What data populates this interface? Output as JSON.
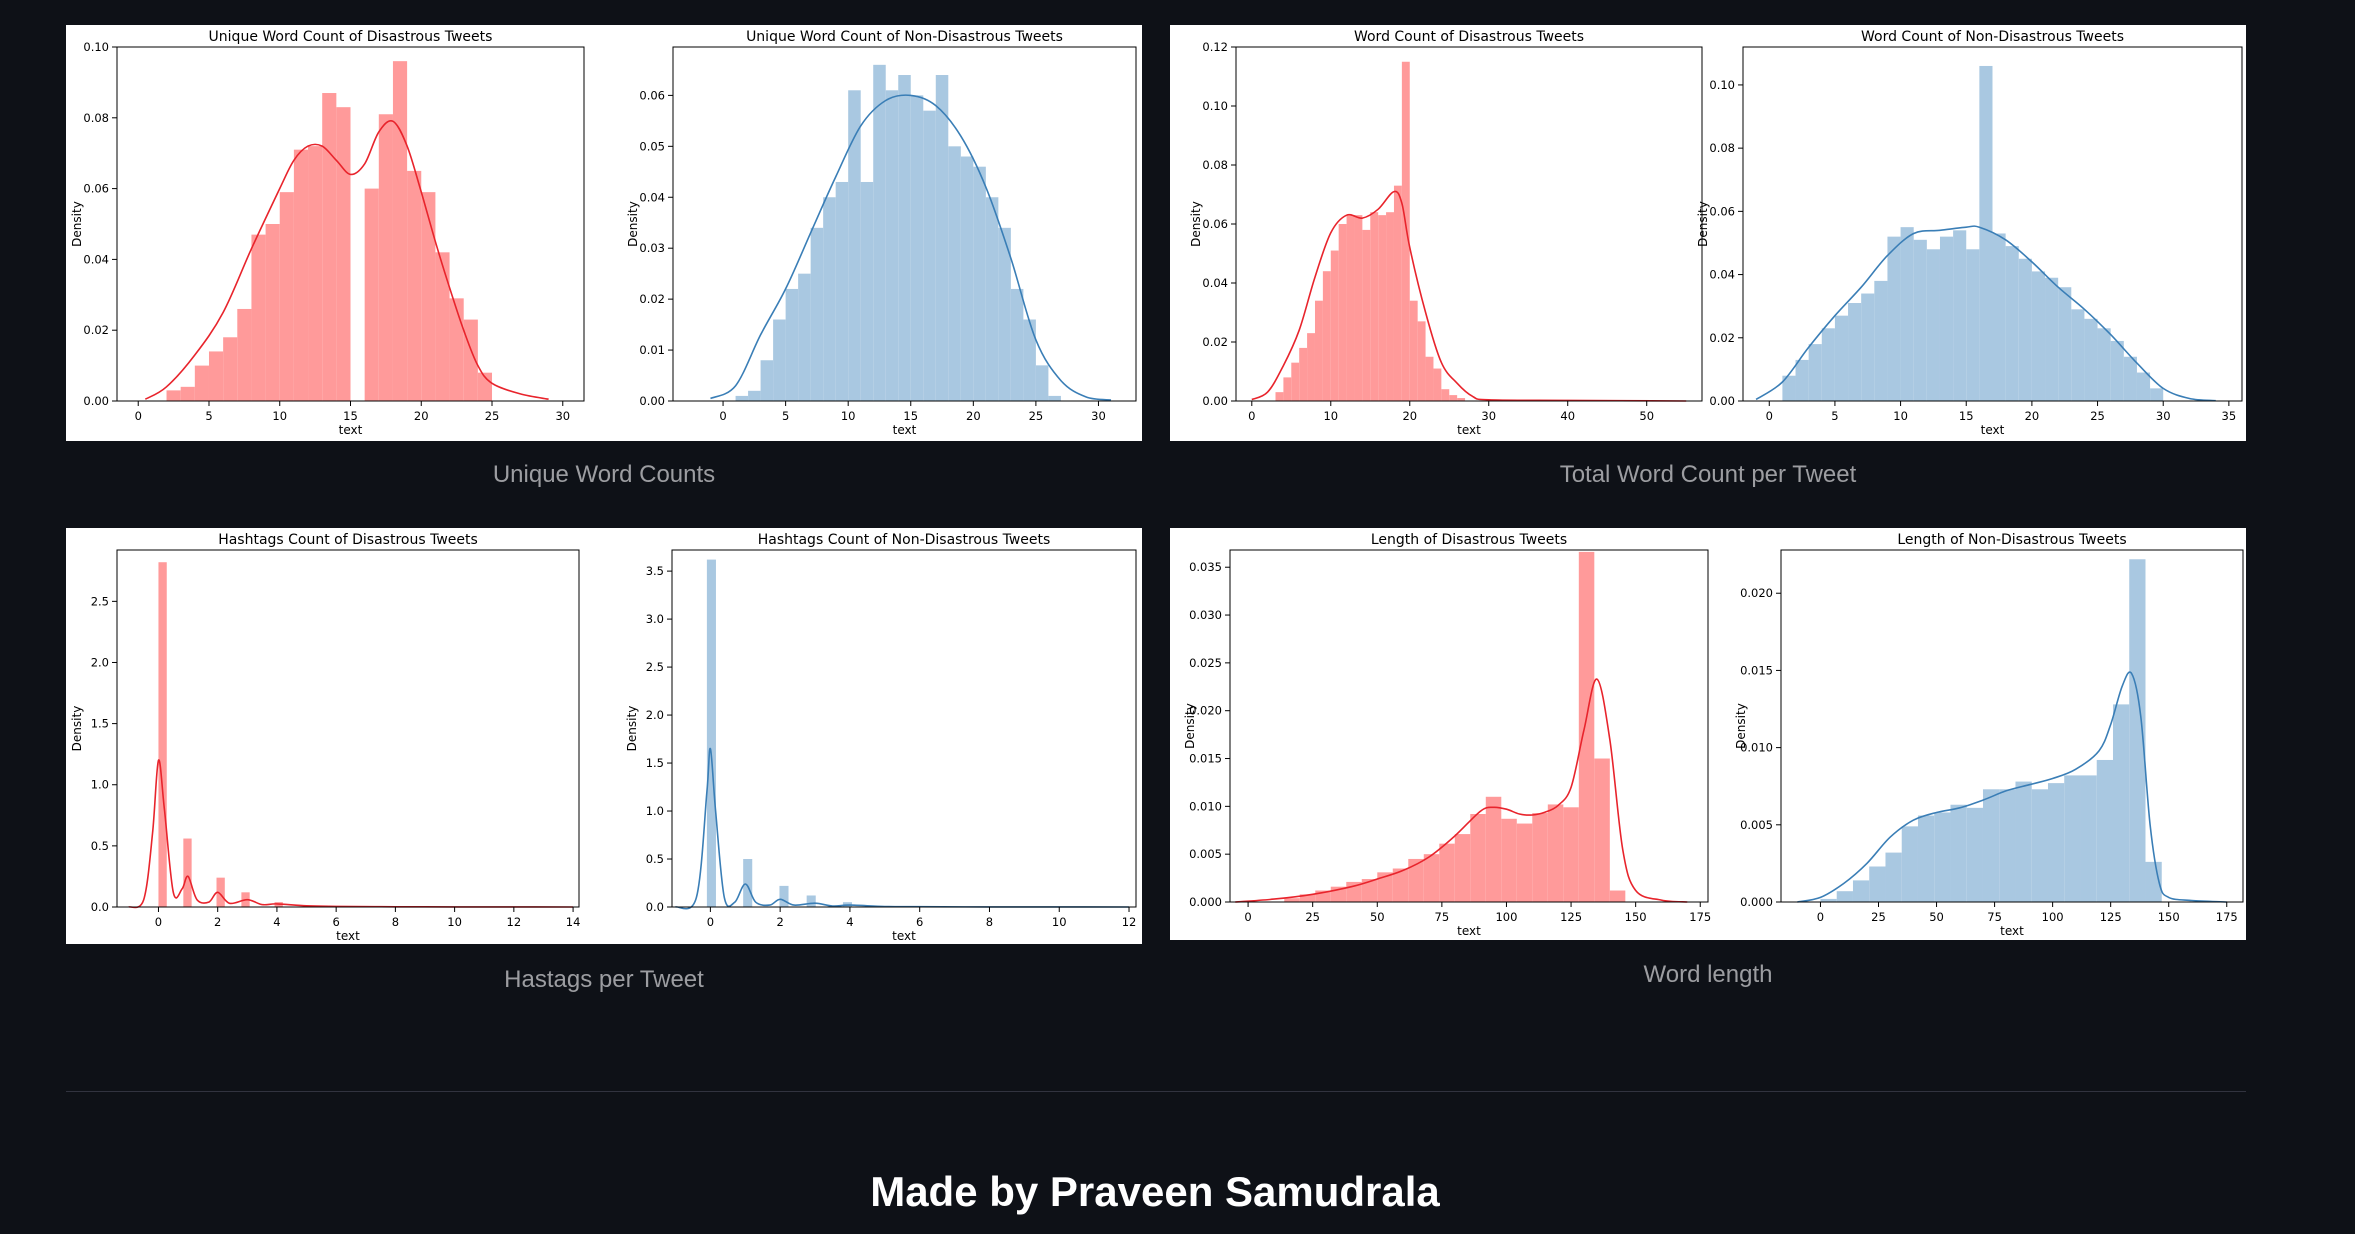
{
  "groups": [
    {
      "caption": "Unique Word Counts"
    },
    {
      "caption": "Total Word Count per Tweet"
    },
    {
      "caption": "Hastags per Tweet"
    },
    {
      "caption": "Word length"
    }
  ],
  "footer": {
    "text": "Made by Praveen Samudrala"
  },
  "colors": {
    "disastrous": "#ff9a9a",
    "disastrous_line": "#e8242c",
    "non_disastrous": "#a9c8e1",
    "non_disastrous_line": "#3a7eb6"
  },
  "chart_data": [
    {
      "type": "bar",
      "title": "Unique Word Count of Disastrous Tweets",
      "xlabel": "text",
      "ylabel": "Density",
      "xlim": [
        -1.5,
        31.5
      ],
      "ylim": [
        0,
        0.1
      ],
      "xticks": [
        0,
        5,
        10,
        15,
        20,
        25,
        30
      ],
      "yticks": [
        0,
        0.02,
        0.04,
        0.06,
        0.08,
        0.1
      ],
      "ytick_labels": [
        "0.00",
        "0.02",
        "0.04",
        "0.06",
        "0.08",
        "0.10"
      ],
      "bin_edges": [
        2,
        3,
        4,
        5,
        6,
        7,
        8,
        9,
        10,
        11,
        12,
        13,
        14,
        15,
        16,
        17,
        18,
        19,
        20,
        21,
        22,
        23,
        24,
        25
      ],
      "values": [
        0.003,
        0.004,
        0.01,
        0.014,
        0.018,
        0.026,
        0.047,
        0.05,
        0.059,
        0.071,
        0.072,
        0.087,
        0.083,
        0.0,
        0.06,
        0.081,
        0.096,
        0.065,
        0.059,
        0.042,
        0.029,
        0.023,
        0.008
      ],
      "kde": [
        [
          0.5,
          0.0005
        ],
        [
          2,
          0.004
        ],
        [
          4,
          0.013
        ],
        [
          6,
          0.025
        ],
        [
          8,
          0.043
        ],
        [
          10,
          0.06
        ],
        [
          11,
          0.068
        ],
        [
          12,
          0.072
        ],
        [
          13,
          0.072
        ],
        [
          14,
          0.068
        ],
        [
          15,
          0.064
        ],
        [
          16,
          0.067
        ],
        [
          17,
          0.076
        ],
        [
          18,
          0.079
        ],
        [
          19,
          0.072
        ],
        [
          20,
          0.059
        ],
        [
          21,
          0.045
        ],
        [
          22,
          0.032
        ],
        [
          23,
          0.02
        ],
        [
          24,
          0.01
        ],
        [
          25,
          0.005
        ],
        [
          27,
          0.002
        ],
        [
          29,
          0.0005
        ]
      ],
      "color": "disastrous"
    },
    {
      "type": "bar",
      "title": "Unique Word Count of Non-Disastrous Tweets",
      "xlabel": "text",
      "ylabel": "Density",
      "xlim": [
        -4,
        33
      ],
      "ylim": [
        0,
        0.0695
      ],
      "xticks": [
        0,
        5,
        10,
        15,
        20,
        25,
        30
      ],
      "yticks": [
        0,
        0.01,
        0.02,
        0.03,
        0.04,
        0.05,
        0.06
      ],
      "ytick_labels": [
        "0.00",
        "0.01",
        "0.02",
        "0.03",
        "0.04",
        "0.05",
        "0.06"
      ],
      "bin_edges": [
        1,
        2,
        3,
        4,
        5,
        6,
        7,
        8,
        9,
        10,
        11,
        12,
        13,
        14,
        15,
        16,
        17,
        18,
        19,
        20,
        21,
        22,
        23,
        24,
        25,
        26,
        27
      ],
      "values": [
        0.001,
        0.002,
        0.008,
        0.016,
        0.022,
        0.025,
        0.034,
        0.04,
        0.043,
        0.061,
        0.043,
        0.066,
        0.061,
        0.064,
        0.06,
        0.057,
        0.064,
        0.05,
        0.048,
        0.046,
        0.04,
        0.034,
        0.022,
        0.016,
        0.007,
        0.001
      ],
      "kde": [
        [
          -1,
          0.0005
        ],
        [
          1,
          0.003
        ],
        [
          3,
          0.013
        ],
        [
          5,
          0.022
        ],
        [
          7,
          0.033
        ],
        [
          9,
          0.044
        ],
        [
          11,
          0.054
        ],
        [
          13,
          0.059
        ],
        [
          15,
          0.06
        ],
        [
          17,
          0.058
        ],
        [
          19,
          0.052
        ],
        [
          21,
          0.042
        ],
        [
          23,
          0.028
        ],
        [
          25,
          0.012
        ],
        [
          27,
          0.004
        ],
        [
          29,
          0.0008
        ],
        [
          31,
          0.0002
        ]
      ],
      "color": "non_disastrous"
    },
    {
      "type": "bar",
      "title": "Word Count of Disastrous Tweets",
      "xlabel": "text",
      "ylabel": "Density",
      "xlim": [
        -2,
        57
      ],
      "ylim": [
        0,
        0.12
      ],
      "xticks": [
        0,
        10,
        20,
        30,
        40,
        50
      ],
      "yticks": [
        0,
        0.02,
        0.04,
        0.06,
        0.08,
        0.1,
        0.12
      ],
      "ytick_labels": [
        "0.00",
        "0.02",
        "0.04",
        "0.06",
        "0.08",
        "0.10",
        "0.12"
      ],
      "bin_edges": [
        3,
        4,
        5,
        6,
        7,
        8,
        9,
        10,
        11,
        12,
        13,
        14,
        15,
        16,
        17,
        18,
        19,
        20,
        21,
        22,
        23,
        24,
        25,
        26,
        27
      ],
      "values": [
        0.003,
        0.008,
        0.013,
        0.018,
        0.023,
        0.034,
        0.044,
        0.051,
        0.06,
        0.063,
        0.063,
        0.058,
        0.064,
        0.063,
        0.064,
        0.073,
        0.115,
        0.034,
        0.027,
        0.015,
        0.011,
        0.004,
        0.002,
        0.001
      ],
      "kde": [
        [
          0,
          0.0005
        ],
        [
          2,
          0.003
        ],
        [
          4,
          0.012
        ],
        [
          6,
          0.024
        ],
        [
          8,
          0.042
        ],
        [
          10,
          0.057
        ],
        [
          12,
          0.063
        ],
        [
          14,
          0.062
        ],
        [
          16,
          0.065
        ],
        [
          18,
          0.071
        ],
        [
          19,
          0.067
        ],
        [
          20,
          0.052
        ],
        [
          22,
          0.03
        ],
        [
          24,
          0.013
        ],
        [
          26,
          0.006
        ],
        [
          28,
          0.0015
        ],
        [
          30,
          0.0004
        ],
        [
          40,
          0.0002
        ],
        [
          55,
          0.0
        ]
      ],
      "color": "disastrous"
    },
    {
      "type": "bar",
      "title": "Word Count of Non-Disastrous Tweets",
      "xlabel": "text",
      "ylabel": "Density",
      "xlim": [
        -2,
        36
      ],
      "ylim": [
        0,
        0.112
      ],
      "xticks": [
        0,
        5,
        10,
        15,
        20,
        25,
        30,
        35
      ],
      "yticks": [
        0,
        0.02,
        0.04,
        0.06,
        0.08,
        0.1
      ],
      "ytick_labels": [
        "0.00",
        "0.02",
        "0.04",
        "0.06",
        "0.08",
        "0.10"
      ],
      "bin_edges": [
        1,
        2,
        3,
        4,
        5,
        6,
        7,
        8,
        9,
        10,
        11,
        12,
        13,
        14,
        15,
        16,
        17,
        18,
        19,
        20,
        21,
        22,
        23,
        24,
        25,
        26,
        27,
        28,
        29,
        30
      ],
      "values": [
        0.008,
        0.013,
        0.018,
        0.023,
        0.027,
        0.031,
        0.034,
        0.038,
        0.052,
        0.055,
        0.051,
        0.048,
        0.052,
        0.054,
        0.048,
        0.106,
        0.053,
        0.049,
        0.045,
        0.041,
        0.039,
        0.036,
        0.029,
        0.026,
        0.023,
        0.019,
        0.014,
        0.009,
        0.004
      ],
      "kde": [
        [
          -1,
          0.0005
        ],
        [
          1,
          0.006
        ],
        [
          3,
          0.017
        ],
        [
          5,
          0.027
        ],
        [
          7,
          0.036
        ],
        [
          9,
          0.046
        ],
        [
          11,
          0.053
        ],
        [
          13,
          0.054
        ],
        [
          15,
          0.055
        ],
        [
          16,
          0.055
        ],
        [
          18,
          0.051
        ],
        [
          20,
          0.044
        ],
        [
          22,
          0.036
        ],
        [
          24,
          0.029
        ],
        [
          26,
          0.021
        ],
        [
          28,
          0.012
        ],
        [
          30,
          0.004
        ],
        [
          32,
          0.0008
        ],
        [
          34,
          0.0001
        ]
      ],
      "color": "non_disastrous"
    },
    {
      "type": "bar",
      "title": "Hashtags Count of Disastrous Tweets",
      "xlabel": "text",
      "ylabel": "Density",
      "xlim": [
        -1.4,
        14.2
      ],
      "ylim": [
        0,
        2.92
      ],
      "xticks": [
        0,
        2,
        4,
        6,
        8,
        10,
        12,
        14
      ],
      "yticks": [
        0,
        0.5,
        1,
        1.5,
        2,
        2.5
      ],
      "ytick_labels": [
        "0.0",
        "0.5",
        "1.0",
        "1.5",
        "2.0",
        "2.5"
      ],
      "bin_edges": [
        0,
        0.28,
        0.56,
        0.84,
        1.12,
        1.4,
        1.68,
        1.96,
        2.24,
        2.52,
        2.8,
        3.08,
        3.36,
        3.64,
        3.92,
        4.2
      ],
      "values": [
        2.82,
        0,
        0,
        0.56,
        0,
        0,
        0,
        0.24,
        0,
        0,
        0.12,
        0,
        0,
        0,
        0.04
      ],
      "kde": [
        [
          -1,
          0.0
        ],
        [
          -0.5,
          0.06
        ],
        [
          -0.2,
          0.6
        ],
        [
          0,
          1.2
        ],
        [
          0.2,
          0.8
        ],
        [
          0.5,
          0.12
        ],
        [
          0.8,
          0.15
        ],
        [
          1,
          0.25
        ],
        [
          1.3,
          0.06
        ],
        [
          1.7,
          0.04
        ],
        [
          2,
          0.12
        ],
        [
          2.4,
          0.03
        ],
        [
          3,
          0.06
        ],
        [
          3.5,
          0.02
        ],
        [
          4,
          0.025
        ],
        [
          5,
          0.01
        ],
        [
          6,
          0.005
        ],
        [
          8,
          0.002
        ],
        [
          10,
          0.001
        ],
        [
          12,
          0.001
        ],
        [
          14,
          0.0
        ]
      ],
      "color": "disastrous"
    },
    {
      "type": "bar",
      "title": "Hashtags Count of Non-Disastrous Tweets",
      "xlabel": "text",
      "ylabel": "Density",
      "xlim": [
        -1.1,
        12.2
      ],
      "ylim": [
        0,
        3.72
      ],
      "xticks": [
        0,
        2,
        4,
        6,
        8,
        10,
        12
      ],
      "yticks": [
        0,
        0.5,
        1,
        1.5,
        2,
        2.5,
        3,
        3.5
      ],
      "ytick_labels": [
        "0.0",
        "0.5",
        "1.0",
        "1.5",
        "2.0",
        "2.5",
        "3.0",
        "3.5"
      ],
      "bin_edges": [
        -0.1,
        0.16,
        0.42,
        0.68,
        0.94,
        1.2,
        1.46,
        1.72,
        1.98,
        2.24,
        2.5,
        2.76,
        3.02,
        3.28,
        3.54,
        3.8,
        4.06,
        4.32
      ],
      "values": [
        3.62,
        0,
        0,
        0,
        0.5,
        0,
        0,
        0,
        0.22,
        0,
        0,
        0.12,
        0,
        0,
        0,
        0.05,
        0
      ],
      "kde": [
        [
          -1,
          0.0
        ],
        [
          -0.4,
          0.1
        ],
        [
          -0.1,
          1.2
        ],
        [
          0,
          1.65
        ],
        [
          0.15,
          1.0
        ],
        [
          0.4,
          0.1
        ],
        [
          0.7,
          0.05
        ],
        [
          1,
          0.24
        ],
        [
          1.3,
          0.05
        ],
        [
          1.7,
          0.02
        ],
        [
          2,
          0.08
        ],
        [
          2.4,
          0.02
        ],
        [
          3,
          0.04
        ],
        [
          3.5,
          0.01
        ],
        [
          4,
          0.02
        ],
        [
          5,
          0.005
        ],
        [
          6,
          0.003
        ],
        [
          8,
          0.001
        ],
        [
          10,
          0.001
        ],
        [
          12,
          0.0
        ]
      ],
      "color": "non_disastrous"
    },
    {
      "type": "bar",
      "title": "Length of Disastrous Tweets",
      "xlabel": "text",
      "ylabel": "Density",
      "xlim": [
        -7,
        178
      ],
      "ylim": [
        0,
        0.0368
      ],
      "xticks": [
        0,
        25,
        50,
        75,
        100,
        125,
        150,
        175
      ],
      "yticks": [
        0,
        0.005,
        0.01,
        0.015,
        0.02,
        0.025,
        0.03,
        0.035
      ],
      "ytick_labels": [
        "0.000",
        "0.005",
        "0.010",
        "0.015",
        "0.020",
        "0.025",
        "0.030",
        "0.035"
      ],
      "bin_edges": [
        14,
        20,
        26,
        32,
        38,
        44,
        50,
        56,
        62,
        68,
        74,
        80,
        86,
        92,
        98,
        104,
        110,
        116,
        122,
        128,
        134,
        140,
        146,
        152
      ],
      "values": [
        0.0004,
        0.0008,
        0.0012,
        0.0016,
        0.0021,
        0.0024,
        0.0031,
        0.0035,
        0.0045,
        0.005,
        0.0061,
        0.0071,
        0.0092,
        0.011,
        0.0087,
        0.0082,
        0.0093,
        0.0102,
        0.0099,
        0.0366,
        0.015,
        0.0012,
        0.0
      ],
      "kde": [
        [
          -5,
          0.0
        ],
        [
          10,
          0.0003
        ],
        [
          25,
          0.0008
        ],
        [
          40,
          0.0016
        ],
        [
          50,
          0.0024
        ],
        [
          60,
          0.0033
        ],
        [
          70,
          0.0047
        ],
        [
          80,
          0.0069
        ],
        [
          90,
          0.0095
        ],
        [
          95,
          0.0099
        ],
        [
          100,
          0.0097
        ],
        [
          105,
          0.0092
        ],
        [
          110,
          0.0091
        ],
        [
          115,
          0.0094
        ],
        [
          120,
          0.0101
        ],
        [
          125,
          0.012
        ],
        [
          130,
          0.018
        ],
        [
          135,
          0.0233
        ],
        [
          140,
          0.017
        ],
        [
          145,
          0.0055
        ],
        [
          150,
          0.0012
        ],
        [
          160,
          0.0002
        ],
        [
          170,
          0.0
        ]
      ],
      "color": "disastrous"
    },
    {
      "type": "bar",
      "title": "Length of Non-Disastrous Tweets",
      "xlabel": "text",
      "ylabel": "Density",
      "xlim": [
        -17,
        182
      ],
      "ylim": [
        0,
        0.0228
      ],
      "xticks": [
        0,
        25,
        50,
        75,
        100,
        125,
        150,
        175
      ],
      "yticks": [
        0,
        0.005,
        0.01,
        0.015,
        0.02
      ],
      "ytick_labels": [
        "0.000",
        "0.005",
        "0.010",
        "0.015",
        "0.020"
      ],
      "bin_edges": [
        -7,
        0,
        7,
        14,
        21,
        28,
        35,
        42,
        49,
        56,
        63,
        70,
        77,
        84,
        91,
        98,
        105,
        112,
        119,
        126,
        133,
        140,
        147,
        154
      ],
      "values": [
        0.0,
        0.0002,
        0.0007,
        0.0014,
        0.0023,
        0.0032,
        0.0049,
        0.0056,
        0.0058,
        0.0063,
        0.0061,
        0.0073,
        0.0073,
        0.0078,
        0.0073,
        0.0077,
        0.0082,
        0.0082,
        0.0092,
        0.0128,
        0.0222,
        0.0026,
        0.0
      ],
      "kde": [
        [
          -10,
          0.0
        ],
        [
          0,
          0.0003
        ],
        [
          10,
          0.0012
        ],
        [
          20,
          0.0025
        ],
        [
          30,
          0.0042
        ],
        [
          40,
          0.0053
        ],
        [
          50,
          0.0058
        ],
        [
          60,
          0.0061
        ],
        [
          70,
          0.0066
        ],
        [
          80,
          0.0072
        ],
        [
          90,
          0.0076
        ],
        [
          100,
          0.008
        ],
        [
          110,
          0.0086
        ],
        [
          120,
          0.0098
        ],
        [
          125,
          0.0115
        ],
        [
          130,
          0.014
        ],
        [
          134,
          0.0148
        ],
        [
          138,
          0.012
        ],
        [
          142,
          0.005
        ],
        [
          146,
          0.0012
        ],
        [
          150,
          0.0003
        ],
        [
          160,
          0.0001
        ],
        [
          175,
          0.0
        ]
      ],
      "color": "non_disastrous"
    }
  ]
}
